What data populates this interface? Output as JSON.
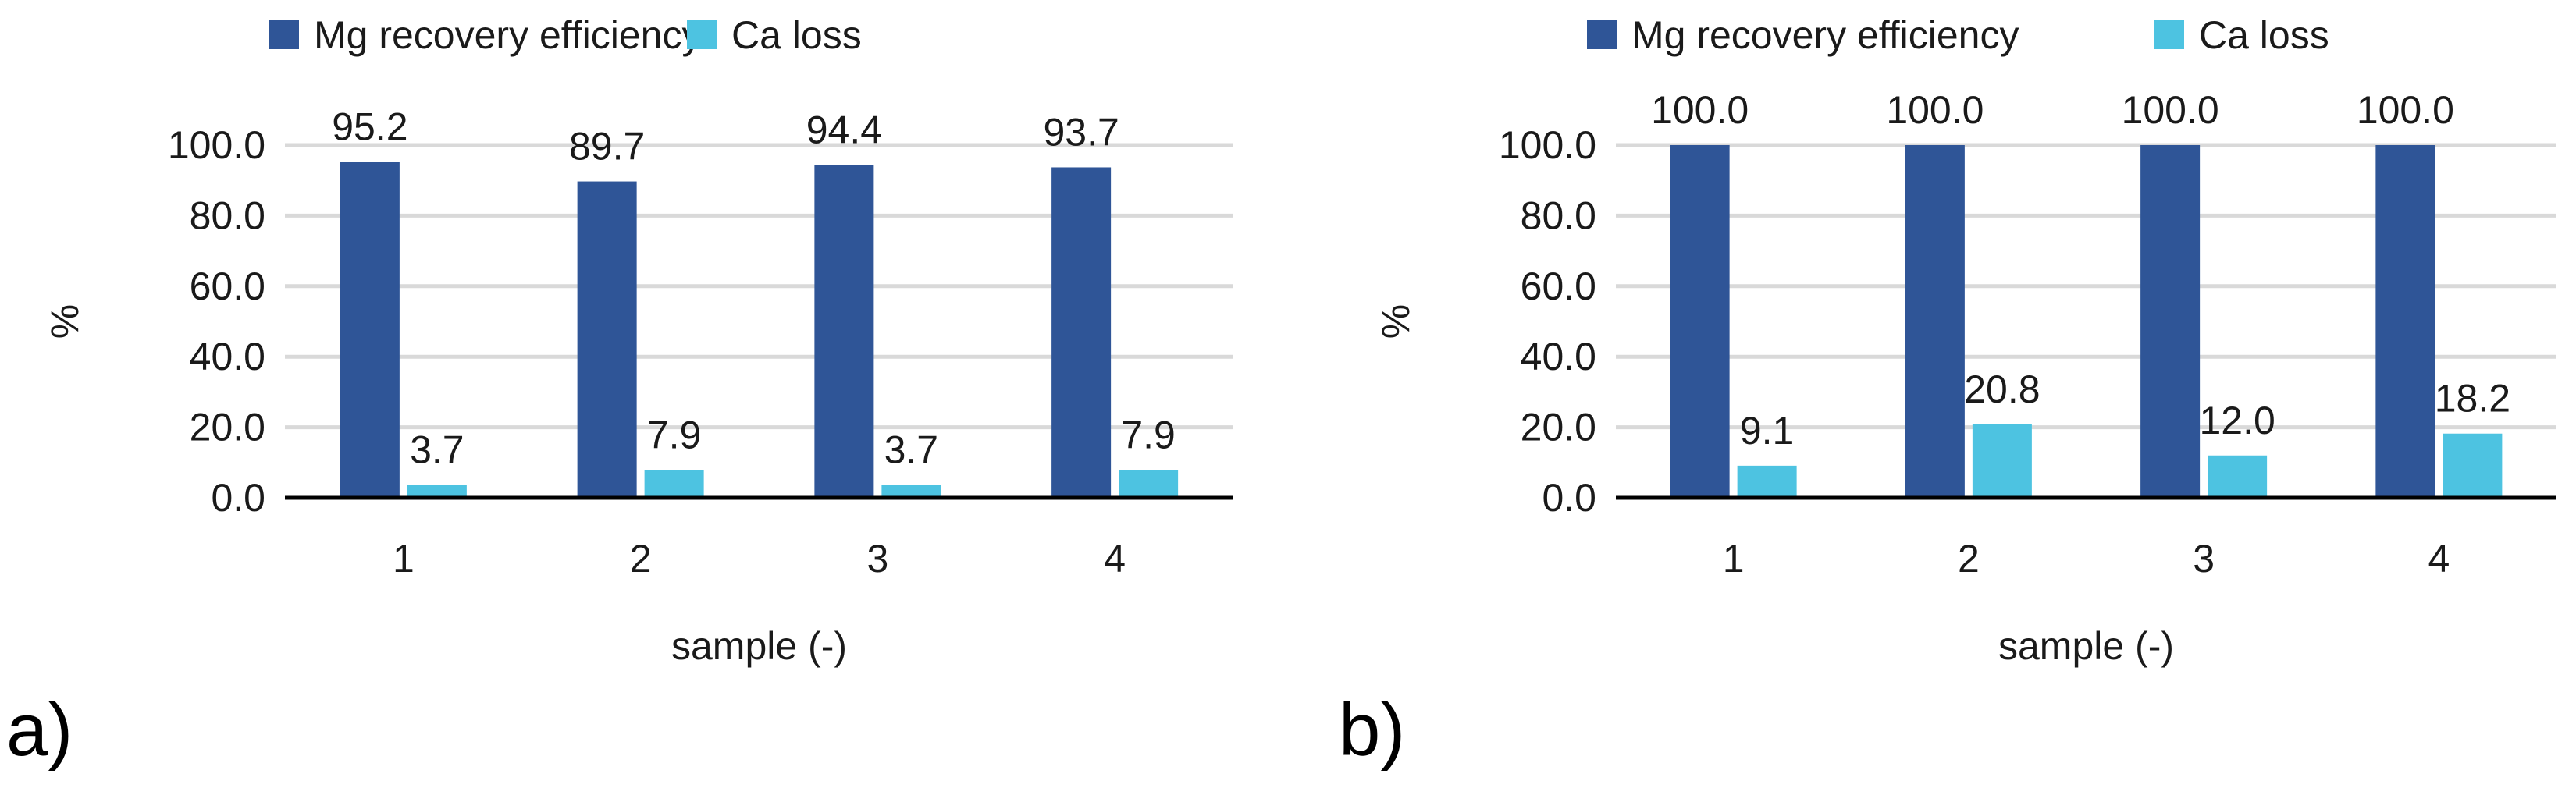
{
  "chart_data": [
    {
      "type": "bar",
      "panel_label": "a)",
      "categories": [
        "1",
        "2",
        "3",
        "4"
      ],
      "series": [
        {
          "name": "Mg recovery efficiency",
          "values": [
            95.2,
            89.7,
            94.4,
            93.7
          ],
          "labels": [
            "95.2",
            "89.7",
            "94.4",
            "93.7"
          ]
        },
        {
          "name": "Ca loss",
          "values": [
            3.7,
            7.9,
            3.7,
            7.9
          ],
          "labels": [
            "3.7",
            "7.9",
            "3.7",
            "7.9"
          ]
        }
      ],
      "colors": [
        "#2f5597",
        "#4dc3e1"
      ],
      "title": "",
      "xlabel": "sample (-)",
      "ylabel": "%",
      "ylim": [
        0,
        100
      ],
      "yticks": [
        0,
        20,
        40,
        60,
        80,
        100
      ],
      "ytick_labels": [
        "0.0",
        "20.0",
        "40.0",
        "60.0",
        "80.0",
        "100.0"
      ],
      "grid": true,
      "legend_position": "top"
    },
    {
      "type": "bar",
      "panel_label": "b)",
      "categories": [
        "1",
        "2",
        "3",
        "4"
      ],
      "series": [
        {
          "name": "Mg recovery efficiency",
          "values": [
            100.0,
            100.0,
            100.0,
            100.0
          ],
          "labels": [
            "100.0",
            "100.0",
            "100.0",
            "100.0"
          ]
        },
        {
          "name": "Ca loss",
          "values": [
            9.1,
            20.8,
            12.0,
            18.2
          ],
          "labels": [
            "9.1",
            "20.8",
            "12.0",
            "18.2"
          ]
        }
      ],
      "colors": [
        "#2f5597",
        "#4dc3e1"
      ],
      "title": "",
      "xlabel": "sample (-)",
      "ylabel": "%",
      "ylim": [
        0,
        100
      ],
      "yticks": [
        0,
        20,
        40,
        60,
        80,
        100
      ],
      "ytick_labels": [
        "0.0",
        "20.0",
        "40.0",
        "60.0",
        "80.0",
        "100.0"
      ],
      "grid": true,
      "legend_position": "top"
    }
  ]
}
